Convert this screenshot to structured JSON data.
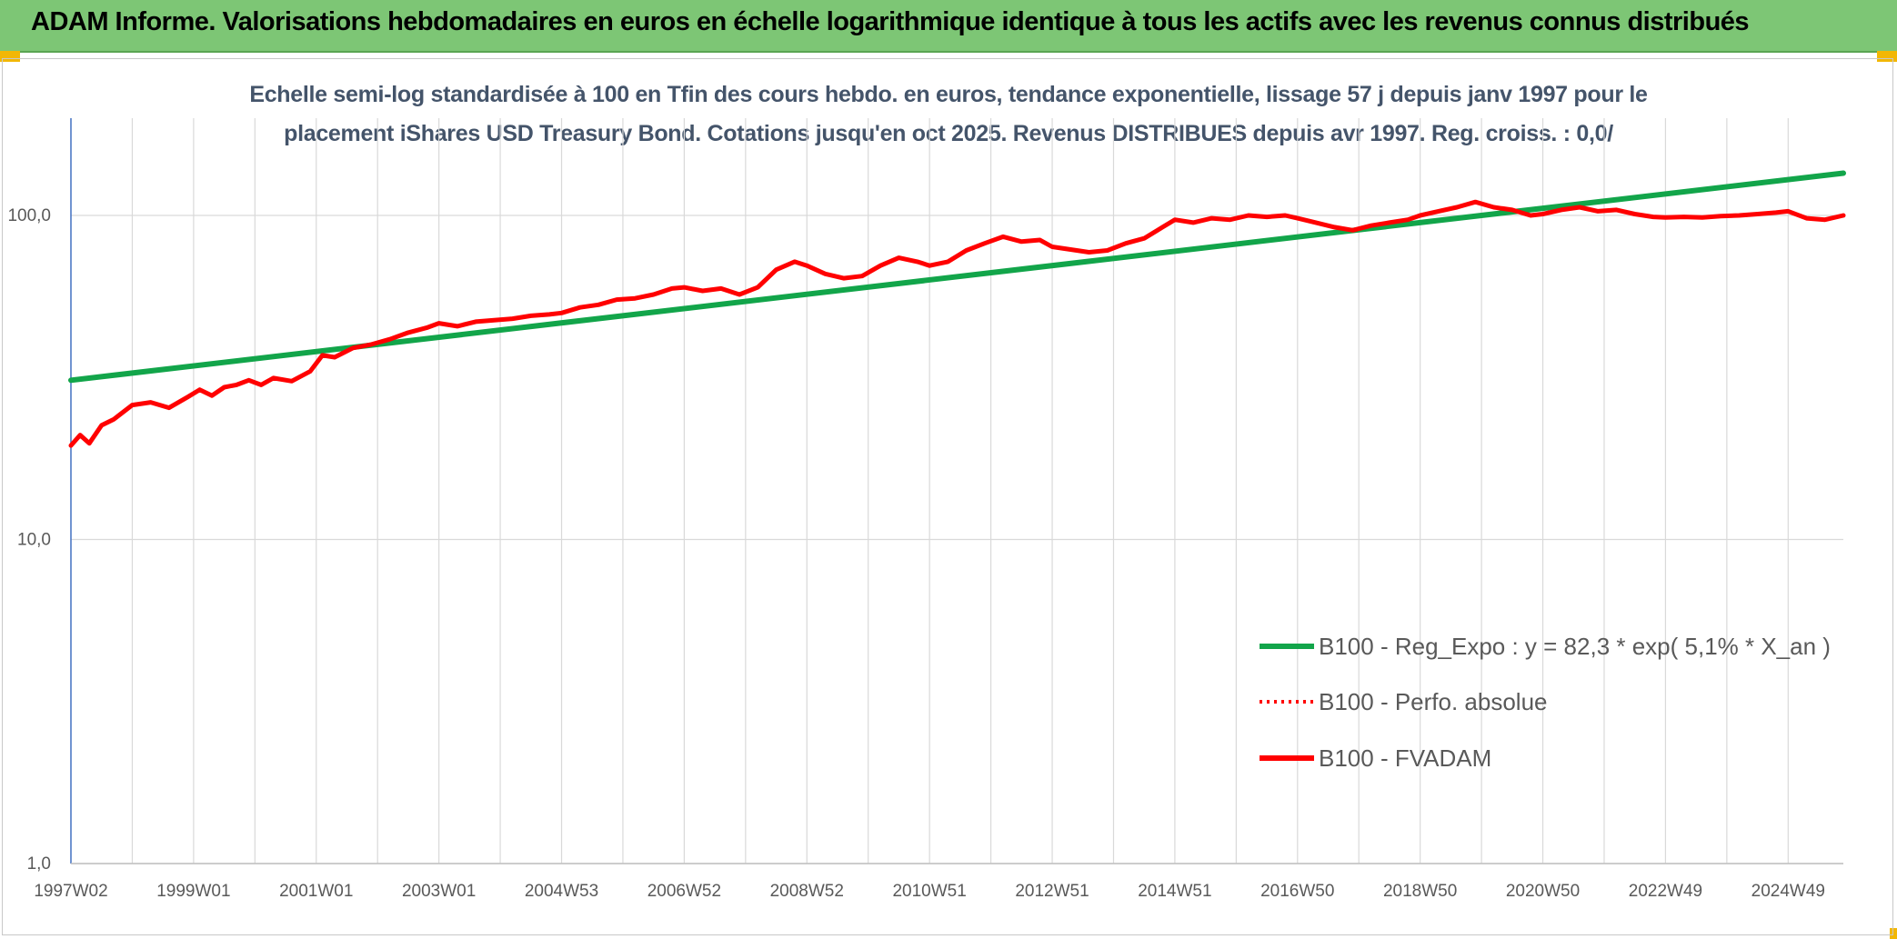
{
  "header": {
    "title": "ADAM Informe. Valorisations hebdomadaires en euros en échelle logarithmique identique à tous les actifs avec les revenus connus distribués"
  },
  "colors": {
    "banner": "#7dc675",
    "accent": "#f2b705",
    "trend": "#12a54a",
    "price": "#ff0000",
    "grid": "#d9d9d9",
    "text": "#595959"
  },
  "chart_data": {
    "type": "line",
    "title_line1": "Echelle semi-log standardisée à 100 en Tfin des cours hebdo. en euros, tendance exponentielle, lissage 57 j depuis janv 1997 pour le",
    "title_line2": "placement iShares USD Treasury Bond. Cotations jusqu'en oct 2025. Revenus DISTRIBUES depuis avr 1997. Reg. croiss. : 0,0/",
    "y_scale": "log",
    "ylim": [
      1,
      200
    ],
    "xlim": [
      1997.0,
      2025.9
    ],
    "grid": true,
    "legend_position": "bottom-right",
    "y_ticks": [
      {
        "value": 1,
        "label": "1,0"
      },
      {
        "value": 10,
        "label": "10,0"
      },
      {
        "value": 100,
        "label": "100,0"
      }
    ],
    "x_ticks": [
      {
        "value": 1997.0,
        "label": "1997W02"
      },
      {
        "value": 1999.0,
        "label": "1999W01"
      },
      {
        "value": 2001.0,
        "label": "2001W01"
      },
      {
        "value": 2003.0,
        "label": "2003W01"
      },
      {
        "value": 2005.0,
        "label": "2004W53"
      },
      {
        "value": 2007.0,
        "label": "2006W52"
      },
      {
        "value": 2009.0,
        "label": "2008W52"
      },
      {
        "value": 2011.0,
        "label": "2010W51"
      },
      {
        "value": 2013.0,
        "label": "2012W51"
      },
      {
        "value": 2015.0,
        "label": "2014W51"
      },
      {
        "value": 2017.0,
        "label": "2016W50"
      },
      {
        "value": 2019.0,
        "label": "2018W50"
      },
      {
        "value": 2021.0,
        "label": "2020W50"
      },
      {
        "value": 2023.0,
        "label": "2022W49"
      },
      {
        "value": 2025.0,
        "label": "2024W49"
      }
    ],
    "series": [
      {
        "name": "B100 - Reg_Expo : y = 82,3 * exp( 5,1% * X_an )",
        "style": "solid-thick",
        "color": "#12a54a",
        "x": [
          1997.0,
          2025.9
        ],
        "y": [
          31,
          135
        ]
      },
      {
        "name": "B100 - Perfo. absolue",
        "style": "dotted",
        "color": "#ff0000",
        "x": [],
        "y": []
      },
      {
        "name": "B100 - FVADAM",
        "style": "solid-thick",
        "color": "#ff0000",
        "x": [
          1997.0,
          1997.15,
          1997.3,
          1997.5,
          1997.7,
          1998.0,
          1998.3,
          1998.6,
          1998.9,
          1999.1,
          1999.3,
          1999.5,
          1999.7,
          1999.9,
          2000.1,
          2000.3,
          2000.6,
          2000.9,
          2001.1,
          2001.3,
          2001.6,
          2001.9,
          2002.2,
          2002.5,
          2002.8,
          2003.0,
          2003.3,
          2003.6,
          2003.9,
          2004.2,
          2004.5,
          2004.8,
          2005.0,
          2005.3,
          2005.6,
          2005.9,
          2006.2,
          2006.5,
          2006.8,
          2007.0,
          2007.3,
          2007.6,
          2007.9,
          2008.2,
          2008.5,
          2008.8,
          2009.0,
          2009.3,
          2009.6,
          2009.9,
          2010.2,
          2010.5,
          2010.8,
          2011.0,
          2011.3,
          2011.6,
          2011.9,
          2012.2,
          2012.5,
          2012.8,
          2013.0,
          2013.3,
          2013.6,
          2013.9,
          2014.2,
          2014.5,
          2014.8,
          2015.0,
          2015.3,
          2015.6,
          2015.9,
          2016.2,
          2016.5,
          2016.8,
          2017.0,
          2017.3,
          2017.6,
          2017.9,
          2018.2,
          2018.5,
          2018.8,
          2019.0,
          2019.3,
          2019.6,
          2019.9,
          2020.2,
          2020.5,
          2020.8,
          2021.0,
          2021.3,
          2021.6,
          2021.9,
          2022.2,
          2022.5,
          2022.8,
          2023.0,
          2023.3,
          2023.6,
          2023.9,
          2024.2,
          2024.5,
          2024.8,
          2025.0,
          2025.3,
          2025.6,
          2025.9
        ],
        "y": [
          19.5,
          21,
          19.8,
          22.5,
          23.5,
          26,
          26.5,
          25.5,
          27.5,
          29,
          27.8,
          29.5,
          30,
          31,
          30,
          31.5,
          30.8,
          33,
          37,
          36.5,
          39,
          40,
          41.5,
          43.5,
          45,
          46.5,
          45.5,
          47,
          47.5,
          48,
          49,
          49.5,
          50,
          52,
          53,
          55,
          55.5,
          57,
          59.5,
          60,
          58.5,
          59.5,
          57,
          60,
          68,
          72,
          70,
          66,
          64,
          65,
          70,
          74,
          72,
          70,
          72,
          78,
          82,
          86,
          83,
          84,
          80,
          78.5,
          77,
          78,
          82,
          85,
          92,
          97,
          95,
          98,
          97,
          100,
          99,
          100,
          98,
          95,
          92,
          90,
          93,
          95,
          97,
          100,
          103,
          106,
          110,
          106,
          104,
          100,
          101,
          104,
          106,
          103,
          104,
          101,
          99,
          98.5,
          99,
          98.5,
          99.5,
          100,
          101,
          102,
          103,
          98,
          97,
          100
        ]
      }
    ]
  }
}
